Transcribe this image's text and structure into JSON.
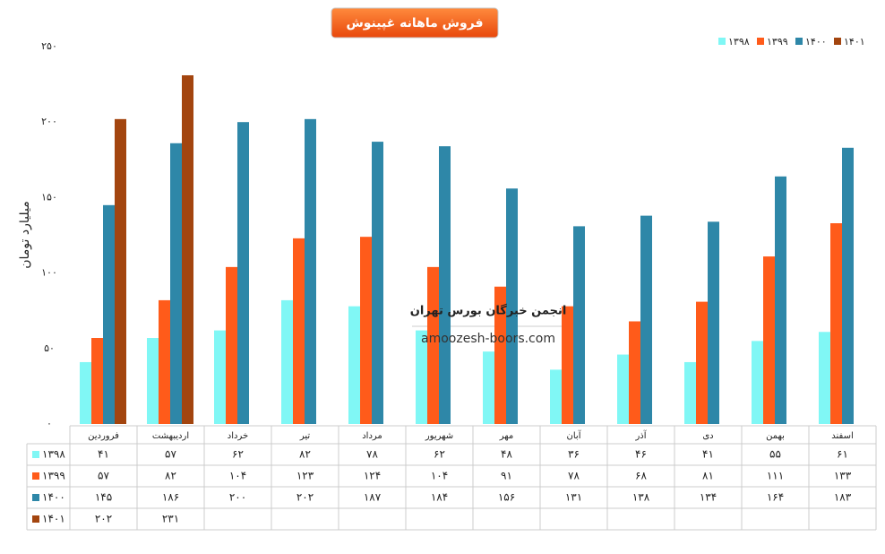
{
  "chart_data": {
    "type": "bar",
    "title": "فروش ماهانه غپینوش",
    "ylabel": "میلیارد تومان",
    "watermark": [
      "انجمن خبرگان بورس تهران",
      "amoozesh-boors.com"
    ],
    "categories": [
      "فروردین",
      "اردیبهشت",
      "خرداد",
      "تیر",
      "مرداد",
      "شهریور",
      "مهر",
      "آبان",
      "آذر",
      "دی",
      "بهمن",
      "اسفند"
    ],
    "series": [
      {
        "name": "۱۳۹۸",
        "color": "#80f7f5",
        "values": [
          41,
          57,
          62,
          82,
          78,
          62,
          48,
          36,
          46,
          41,
          55,
          61
        ],
        "value_labels": [
          "۴۱",
          "۵۷",
          "۶۲",
          "۸۲",
          "۷۸",
          "۶۲",
          "۴۸",
          "۳۶",
          "۴۶",
          "۴۱",
          "۵۵",
          "۶۱"
        ]
      },
      {
        "name": "۱۳۹۹",
        "color": "#ff5b1a",
        "values": [
          57,
          82,
          104,
          123,
          124,
          104,
          91,
          78,
          68,
          81,
          111,
          133
        ],
        "value_labels": [
          "۵۷",
          "۸۲",
          "۱۰۴",
          "۱۲۳",
          "۱۲۴",
          "۱۰۴",
          "۹۱",
          "۷۸",
          "۶۸",
          "۸۱",
          "۱۱۱",
          "۱۳۳"
        ]
      },
      {
        "name": "۱۴۰۰",
        "color": "#2e87a8",
        "values": [
          145,
          186,
          200,
          202,
          187,
          184,
          156,
          131,
          138,
          134,
          164,
          183
        ],
        "value_labels": [
          "۱۴۵",
          "۱۸۶",
          "۲۰۰",
          "۲۰۲",
          "۱۸۷",
          "۱۸۴",
          "۱۵۶",
          "۱۳۱",
          "۱۳۸",
          "۱۳۴",
          "۱۶۴",
          "۱۸۳"
        ]
      },
      {
        "name": "۱۴۰۱",
        "color": "#a3450f",
        "values": [
          202,
          231,
          null,
          null,
          null,
          null,
          null,
          null,
          null,
          null,
          null,
          null
        ],
        "value_labels": [
          "۲۰۲",
          "۲۳۱",
          null,
          null,
          null,
          null,
          null,
          null,
          null,
          null,
          null,
          null
        ]
      }
    ],
    "ylim": [
      0,
      250
    ],
    "yticks": [
      {
        "value": 0,
        "label": "۰"
      },
      {
        "value": 50,
        "label": "۵۰"
      },
      {
        "value": 100,
        "label": "۱۰۰"
      },
      {
        "value": 150,
        "label": "۱۵۰"
      },
      {
        "value": 200,
        "label": "۲۰۰"
      },
      {
        "value": 250,
        "label": "۲۵۰"
      }
    ],
    "grid": false,
    "legend": "top-right"
  }
}
